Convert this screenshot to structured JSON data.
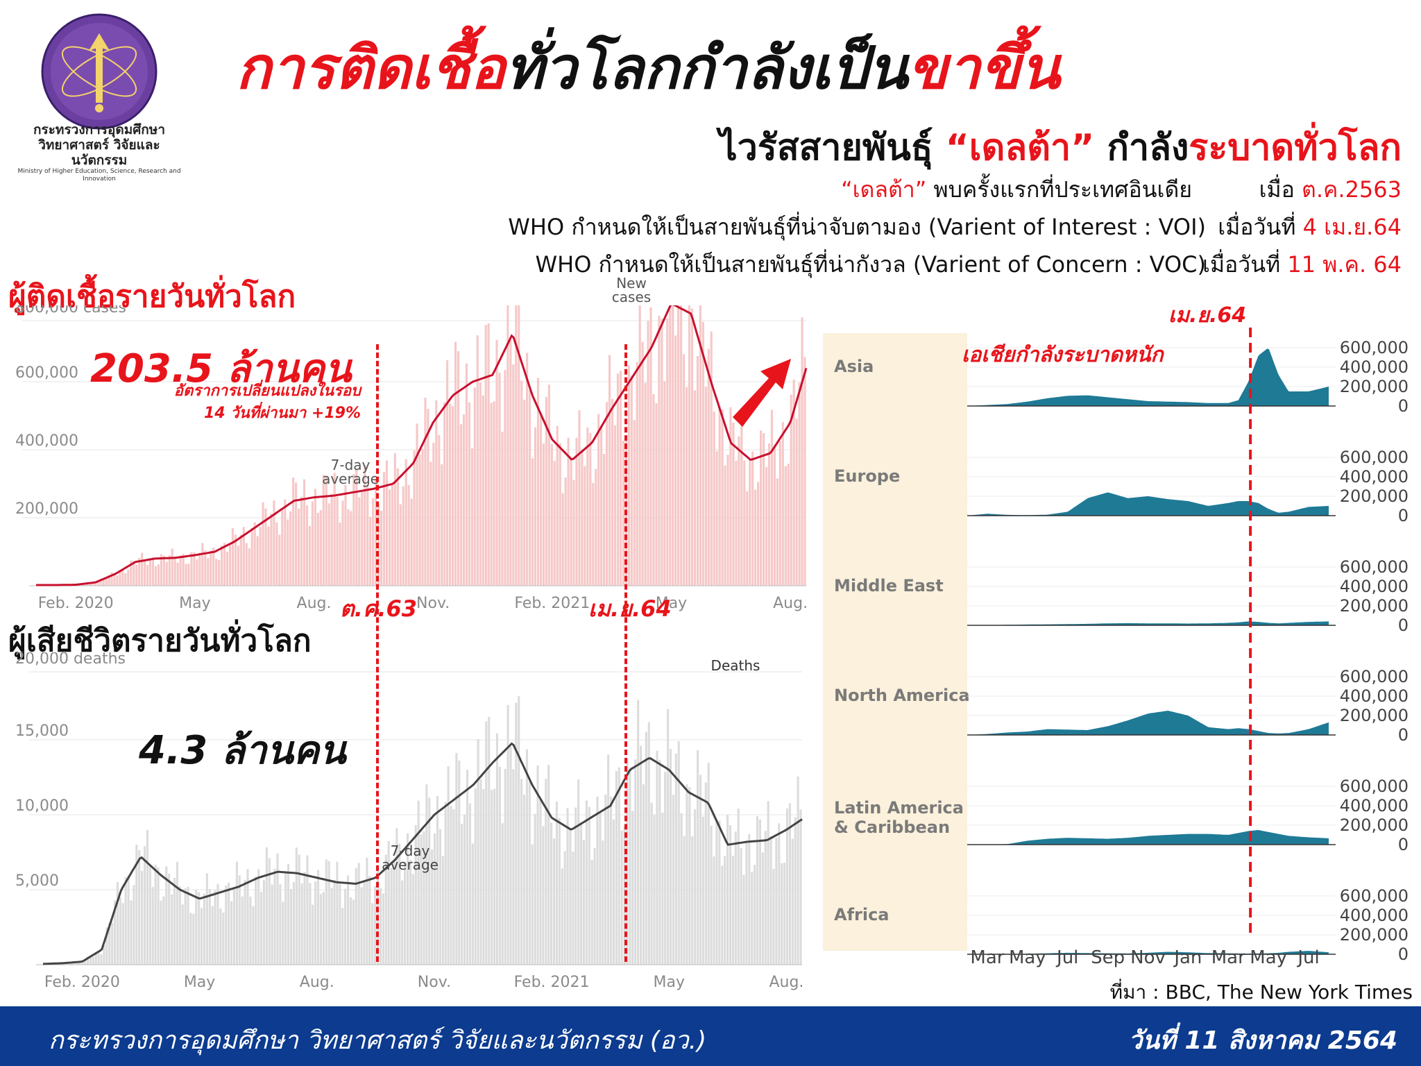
{
  "header": {
    "logo_alt": "กระทรวงการอุดมศึกษา วิทยาศาสตร์ วิจัยและนวัตกรรม",
    "ministry_name": "กระทรวงการอุดมศึกษา",
    "ministry_name_2": "วิทยาศาสตร์ วิจัยและนวัตกรรม",
    "ministry_name_en": "Ministry of Higher Education, Science, Research and Innovation",
    "headline_part1": "การติดเชื้อ",
    "headline_part2": "ทั่วโลกกำลังเป็น",
    "headline_part3": "ขาขึ้น"
  },
  "subheader": {
    "part1": "ไวรัสสายพันธุ์ ",
    "part2": "“เดลต้า”",
    "part3": " กำลัง",
    "part4": "ระบาดทั่วโลก",
    "lines": [
      {
        "left_red": "“เดลต้า”",
        "left_black": " พบครั้งแรกที่ประเทศอินเดีย",
        "right_black": "เมื่อ ",
        "right_red": "ต.ค.2563"
      },
      {
        "left_red": "",
        "left_black": "WHO กำหนดให้เป็นสายพันธุ์ที่น่าจับตามอง (Varient of Interest : VOI)",
        "right_black": "เมื่อวันที่ ",
        "right_red": "4 เม.ย.64"
      },
      {
        "left_red": "",
        "left_black": "WHO กำหนดให้เป็นสายพันธุ์ที่น่ากังวล (Varient of Concern : VOC)",
        "right_black": "เมื่อวันที่ ",
        "right_red": "11 พ.ค. 64"
      }
    ]
  },
  "cases_panel": {
    "title": "ผู้ติดเชื้อรายวันทั่วโลก",
    "total": "203.5 ล้านคน",
    "rate_line1": "อัตราการเปลี่ยนแปลงในรอบ",
    "rate_line2": "14 วันที่ผ่านมา +19%",
    "avg_label_1": "7-day",
    "avg_label_2": "average",
    "new_label_1": "New",
    "new_label_2": "cases"
  },
  "deaths_panel": {
    "title": "ผู้เสียชีวิตรายวันทั่วโลก",
    "total": "4.3 ล้านคน",
    "avg_label_1": "7-day",
    "avg_label_2": "average",
    "deaths_label": "Deaths"
  },
  "markers": {
    "oct63": "ต.ค.63",
    "apr64": "เม.ย.64",
    "regional_apr64": "เม.ย.64",
    "asia_note": "เอเชียกำลังระบาดหนัก"
  },
  "source": "ที่มา : BBC, The New York Times",
  "footer": {
    "ministry": "กระทรวงการอุดมศึกษา วิทยาศาสตร์ วิจัยและนวัตกรรม (อว.)",
    "date": "วันที่ 11 สิงหาคม 2564"
  },
  "colors": {
    "red": "#e8141b",
    "cases_bar": "#f6c8c8",
    "cases_line": "#c8102e",
    "deaths_bar": "#dcdcdc",
    "deaths_line": "#444444",
    "region_fill": "#1f7a96",
    "region_label_bg": "#fbf1dc",
    "footer_bg": "#0c3b8f"
  },
  "chart_data": [
    {
      "type": "line",
      "id": "daily-cases",
      "title": "ผู้ติดเชื้อรายวันทั่วโลก",
      "ylabel": "800,000 cases",
      "ylim": [
        0,
        800000
      ],
      "yticks": [
        200000,
        400000,
        600000
      ],
      "ytick_labels": [
        "200,000",
        "400,000",
        "600,000"
      ],
      "top_label": "800,000 cases",
      "xtick_labels": [
        "Feb. 2020",
        "May",
        "Aug.",
        "Nov.",
        "Feb. 2021",
        "May",
        "Aug."
      ],
      "xtick_months": [
        1,
        4,
        7,
        10,
        13,
        16,
        19
      ],
      "grid": true,
      "series": [
        {
          "name": "7-day average",
          "x": [
            0,
            0.5,
            1,
            1.5,
            2,
            2.5,
            3,
            3.5,
            4,
            4.5,
            5,
            5.5,
            6,
            6.5,
            7,
            7.5,
            8,
            8.5,
            9,
            9.5,
            10,
            10.5,
            11,
            11.5,
            12,
            12.5,
            13,
            13.5,
            14,
            14.5,
            15,
            15.5,
            16,
            16.5,
            17,
            17.5,
            18,
            18.5,
            19,
            19.4
          ],
          "y": [
            2000,
            2000,
            3000,
            10000,
            35000,
            70000,
            80000,
            82000,
            90000,
            100000,
            130000,
            170000,
            210000,
            250000,
            260000,
            265000,
            275000,
            285000,
            300000,
            360000,
            480000,
            560000,
            600000,
            620000,
            740000,
            560000,
            430000,
            370000,
            420000,
            520000,
            610000,
            700000,
            830000,
            800000,
            600000,
            420000,
            370000,
            390000,
            480000,
            640000
          ]
        }
      ]
    },
    {
      "type": "line",
      "id": "daily-deaths",
      "title": "ผู้เสียชีวิตรายวันทั่วโลก",
      "ylabel": "20,000 deaths",
      "ylim": [
        0,
        20000
      ],
      "yticks": [
        5000,
        10000,
        15000
      ],
      "ytick_labels": [
        "5,000",
        "10,000",
        "15,000"
      ],
      "top_label": "20,000 deaths",
      "xtick_labels": [
        "Feb. 2020",
        "May",
        "Aug.",
        "Nov.",
        "Feb. 2021",
        "May",
        "Aug."
      ],
      "xtick_months": [
        1,
        4,
        7,
        10,
        13,
        16,
        19
      ],
      "grid": true,
      "series": [
        {
          "name": "7-day average",
          "x": [
            0,
            0.5,
            1,
            1.5,
            2,
            2.5,
            3,
            3.5,
            4,
            4.5,
            5,
            5.5,
            6,
            6.5,
            7,
            7.5,
            8,
            8.5,
            9,
            9.5,
            10,
            10.5,
            11,
            11.5,
            12,
            12.5,
            13,
            13.5,
            14,
            14.5,
            15,
            15.5,
            16,
            16.5,
            17,
            17.5,
            18,
            18.5,
            19,
            19.4
          ],
          "y": [
            50,
            100,
            200,
            1000,
            5000,
            7200,
            6000,
            5000,
            4400,
            4800,
            5200,
            5800,
            6200,
            6100,
            5800,
            5500,
            5400,
            5800,
            7000,
            8500,
            10000,
            11000,
            12000,
            13500,
            14800,
            12000,
            9800,
            9000,
            9800,
            10600,
            13000,
            13800,
            13000,
            11500,
            10800,
            8000,
            8200,
            8300,
            9000,
            9700
          ]
        }
      ]
    },
    {
      "type": "area",
      "id": "regional-cases",
      "facets": [
        "Asia",
        "Europe",
        "Middle East",
        "North America",
        "Latin America & Caribbean",
        "Africa"
      ],
      "ylim": [
        0,
        600000
      ],
      "yticks": [
        0,
        200000,
        400000,
        600000
      ],
      "ytick_labels": [
        "0",
        "200,000",
        "400,000",
        "600,000"
      ],
      "xtick_labels": [
        "Mar",
        "May",
        "Jul",
        "Sep",
        "Nov",
        "Jan",
        "Mar",
        "May",
        "Jul"
      ],
      "xtick_months": [
        2,
        4,
        6,
        8,
        10,
        12,
        14,
        16,
        18
      ],
      "x": [
        1,
        2,
        3,
        4,
        5,
        6,
        7,
        8,
        9,
        10,
        11,
        12,
        13,
        14,
        14.5,
        15,
        15.5,
        16,
        16.5,
        17,
        18,
        19
      ],
      "series": [
        {
          "name": "Asia",
          "values": [
            0,
            10000,
            20000,
            45000,
            80000,
            105000,
            110000,
            90000,
            70000,
            50000,
            45000,
            40000,
            30000,
            30000,
            60000,
            250000,
            520000,
            600000,
            320000,
            150000,
            150000,
            200000
          ]
        },
        {
          "name": "Europe",
          "values": [
            0,
            20000,
            8000,
            5000,
            10000,
            40000,
            180000,
            240000,
            180000,
            200000,
            170000,
            150000,
            100000,
            130000,
            150000,
            150000,
            130000,
            70000,
            30000,
            40000,
            90000,
            100000
          ]
        },
        {
          "name": "Middle East",
          "values": [
            0,
            1000,
            5000,
            8000,
            10000,
            12000,
            15000,
            20000,
            22000,
            20000,
            20000,
            18000,
            20000,
            25000,
            30000,
            40000,
            35000,
            25000,
            20000,
            25000,
            35000,
            40000
          ]
        },
        {
          "name": "North America",
          "values": [
            0,
            10000,
            25000,
            35000,
            60000,
            55000,
            50000,
            90000,
            150000,
            220000,
            250000,
            200000,
            80000,
            60000,
            70000,
            60000,
            40000,
            20000,
            15000,
            20000,
            60000,
            130000
          ]
        },
        {
          "name": "Latin America & Caribbean",
          "values": [
            0,
            0,
            5000,
            40000,
            60000,
            70000,
            65000,
            60000,
            70000,
            90000,
            100000,
            110000,
            110000,
            100000,
            120000,
            140000,
            150000,
            130000,
            110000,
            90000,
            75000,
            65000
          ]
        },
        {
          "name": "Africa",
          "values": [
            0,
            0,
            1000,
            5000,
            10000,
            15000,
            12000,
            10000,
            8000,
            15000,
            25000,
            20000,
            12000,
            10000,
            8000,
            7000,
            8000,
            10000,
            15000,
            25000,
            35000,
            20000
          ]
        }
      ]
    }
  ]
}
